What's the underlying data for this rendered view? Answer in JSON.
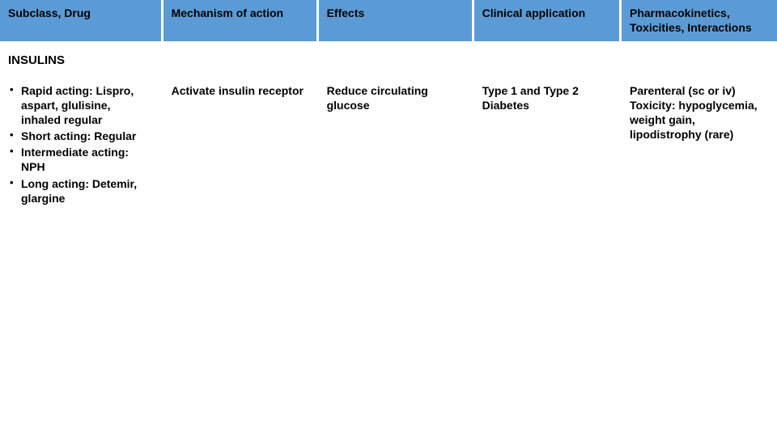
{
  "table": {
    "header_bg": "#5b9bd5",
    "header_text_color": "#000000",
    "body_bg": "#ffffff",
    "body_text_color": "#000000",
    "font_family": "Arial",
    "header_fontsize": 14,
    "body_fontsize": 14,
    "columns": [
      {
        "label": "Subclass, Drug",
        "width": "21%"
      },
      {
        "label": "Mechanism of action",
        "width": "20%"
      },
      {
        "label": "Effects",
        "width": "20%"
      },
      {
        "label": "Clinical application",
        "width": "19%"
      },
      {
        "label": "Pharmacokinetics, Toxicities, Interactions",
        "width": "20%"
      }
    ],
    "section_title": "INSULINS",
    "row": {
      "subclass_bullets": [
        "Rapid acting: Lispro, aspart, glulisine, inhaled regular",
        "Short acting: Regular",
        "Intermediate acting: NPH",
        "Long acting: Detemir, glargine"
      ],
      "mechanism": "Activate insulin receptor",
      "effects": "Reduce circulating glucose",
      "clinical": "Type 1 and Type 2 Diabetes",
      "pharm": "Parenteral (sc or iv) Toxicity: hypoglycemia, weight gain, lipodistrophy (rare)"
    }
  }
}
